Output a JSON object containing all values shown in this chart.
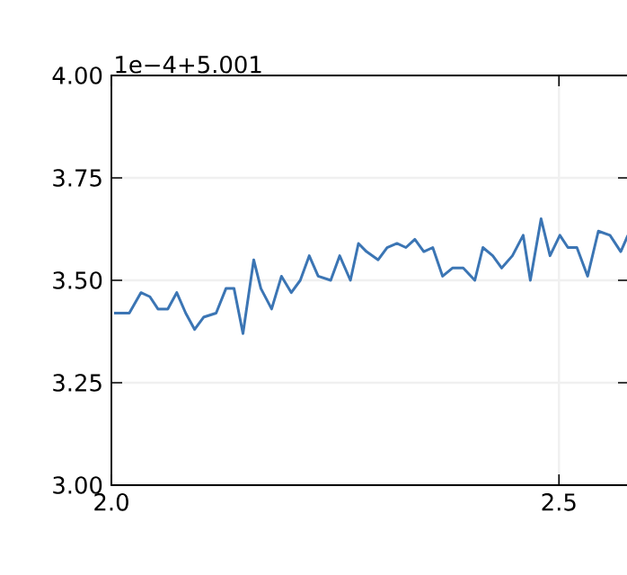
{
  "chart_data": {
    "type": "line",
    "annotations": [
      "1e−4+5.001"
    ],
    "xlim": [
      2.0,
      2.578
    ],
    "xticks": [
      {
        "value": 2.0,
        "label": "2.0"
      },
      {
        "value": 2.5,
        "label": "2.5"
      }
    ],
    "ylim": [
      3.0,
      4.0
    ],
    "yticks": [
      {
        "value": 3.0,
        "label": "3.00"
      },
      {
        "value": 3.25,
        "label": "3.25"
      },
      {
        "value": 3.5,
        "label": "3.50"
      },
      {
        "value": 3.75,
        "label": "3.75"
      },
      {
        "value": 4.0,
        "label": "4.00"
      }
    ],
    "grid": true,
    "marker": "none",
    "line_style": "solid",
    "series": [
      {
        "color": "#3b75b4",
        "x": [
          2.003,
          2.02,
          2.033,
          2.043,
          2.052,
          2.063,
          2.073,
          2.083,
          2.093,
          2.103,
          2.117,
          2.128,
          2.137,
          2.147,
          2.159,
          2.167,
          2.179,
          2.19,
          2.201,
          2.211,
          2.221,
          2.231,
          2.245,
          2.255,
          2.267,
          2.276,
          2.285,
          2.298,
          2.308,
          2.319,
          2.329,
          2.339,
          2.349,
          2.359,
          2.37,
          2.381,
          2.393,
          2.406,
          2.415,
          2.426,
          2.436,
          2.448,
          2.46,
          2.468,
          2.48,
          2.49,
          2.501,
          2.51,
          2.52,
          2.532,
          2.544,
          2.557,
          2.569,
          2.577
        ],
        "values": [
          3.42,
          3.42,
          3.47,
          3.46,
          3.43,
          3.43,
          3.47,
          3.42,
          3.38,
          3.41,
          3.42,
          3.48,
          3.48,
          3.37,
          3.55,
          3.48,
          3.43,
          3.51,
          3.47,
          3.5,
          3.56,
          3.51,
          3.5,
          3.56,
          3.5,
          3.59,
          3.57,
          3.55,
          3.58,
          3.59,
          3.58,
          3.6,
          3.57,
          3.58,
          3.51,
          3.53,
          3.53,
          3.5,
          3.58,
          3.56,
          3.53,
          3.56,
          3.61,
          3.5,
          3.65,
          3.56,
          3.61,
          3.58,
          3.58,
          3.51,
          3.62,
          3.61,
          3.57,
          3.61
        ]
      }
    ]
  }
}
